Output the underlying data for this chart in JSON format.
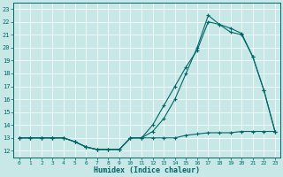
{
  "xlabel": "Humidex (Indice chaleur)",
  "bg_color": "#c8e8e8",
  "line_color": "#006666",
  "xlim": [
    -0.5,
    23.5
  ],
  "ylim": [
    11.5,
    23.5
  ],
  "yticks": [
    12,
    13,
    14,
    15,
    16,
    17,
    18,
    19,
    20,
    21,
    22,
    23
  ],
  "xticks": [
    0,
    1,
    2,
    3,
    4,
    5,
    6,
    7,
    8,
    9,
    10,
    11,
    12,
    13,
    14,
    15,
    16,
    17,
    18,
    19,
    20,
    21,
    22,
    23
  ],
  "line1_x": [
    0,
    1,
    2,
    3,
    4,
    5,
    6,
    7,
    8,
    9,
    10,
    11,
    12,
    13,
    14,
    15,
    16,
    17,
    18,
    19,
    20,
    21,
    22,
    23
  ],
  "line1_y": [
    13,
    13,
    13,
    13,
    13,
    12.7,
    12.3,
    12.1,
    12.1,
    12.1,
    13,
    13,
    13,
    13,
    13,
    13.2,
    13.3,
    13.4,
    13.4,
    13.4,
    13.5,
    13.5,
    13.5,
    13.5
  ],
  "line2_x": [
    0,
    1,
    2,
    3,
    4,
    5,
    6,
    7,
    8,
    9,
    10,
    11,
    12,
    13,
    14,
    15,
    16,
    17,
    18,
    19,
    20,
    21,
    22,
    23
  ],
  "line2_y": [
    13,
    13,
    13,
    13,
    13,
    12.7,
    12.3,
    12.1,
    12.1,
    12.1,
    13,
    13,
    13.5,
    14.5,
    16,
    18,
    20,
    22.5,
    21.8,
    21.2,
    21,
    19.3,
    16.7,
    13.5
  ],
  "line3_x": [
    0,
    1,
    2,
    3,
    4,
    5,
    6,
    7,
    8,
    9,
    10,
    11,
    12,
    13,
    14,
    15,
    16,
    17,
    18,
    19,
    20,
    21,
    22,
    23
  ],
  "line3_y": [
    13,
    13,
    13,
    13,
    13,
    12.7,
    12.3,
    12.1,
    12.1,
    12.1,
    13,
    13,
    14,
    15.5,
    17,
    18.5,
    19.8,
    22,
    21.8,
    21.5,
    21.1,
    19.3,
    16.7,
    13.5
  ]
}
